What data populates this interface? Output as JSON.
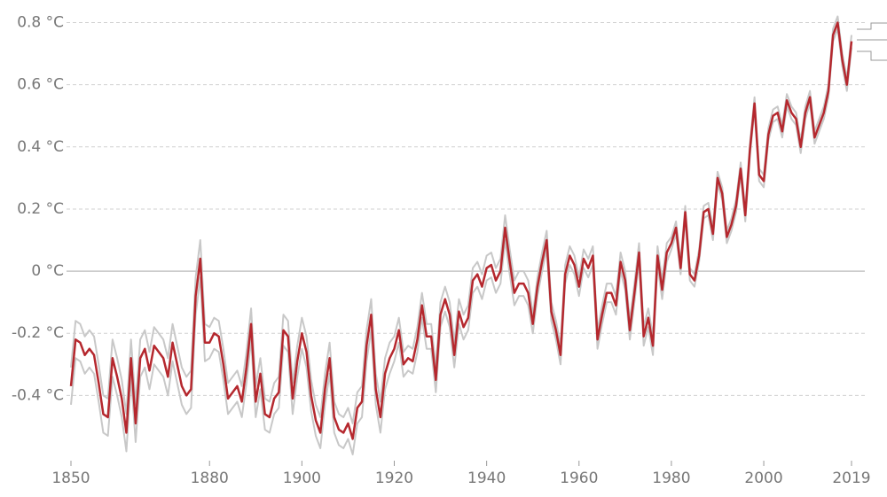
{
  "chart_data": {
    "type": "line",
    "x": [
      1850,
      1851,
      1852,
      1853,
      1854,
      1855,
      1856,
      1857,
      1858,
      1859,
      1860,
      1861,
      1862,
      1863,
      1864,
      1865,
      1866,
      1867,
      1868,
      1869,
      1870,
      1871,
      1872,
      1873,
      1874,
      1875,
      1876,
      1877,
      1878,
      1879,
      1880,
      1881,
      1882,
      1883,
      1884,
      1885,
      1886,
      1887,
      1888,
      1889,
      1890,
      1891,
      1892,
      1893,
      1894,
      1895,
      1896,
      1897,
      1898,
      1899,
      1900,
      1901,
      1902,
      1903,
      1904,
      1905,
      1906,
      1907,
      1908,
      1909,
      1910,
      1911,
      1912,
      1913,
      1914,
      1915,
      1916,
      1917,
      1918,
      1919,
      1920,
      1921,
      1922,
      1923,
      1924,
      1925,
      1926,
      1927,
      1928,
      1929,
      1930,
      1931,
      1932,
      1933,
      1934,
      1935,
      1936,
      1937,
      1938,
      1939,
      1940,
      1941,
      1942,
      1943,
      1944,
      1945,
      1946,
      1947,
      1948,
      1949,
      1950,
      1951,
      1952,
      1953,
      1954,
      1955,
      1956,
      1957,
      1958,
      1959,
      1960,
      1961,
      1962,
      1963,
      1964,
      1965,
      1966,
      1967,
      1968,
      1969,
      1970,
      1971,
      1972,
      1973,
      1974,
      1975,
      1976,
      1977,
      1978,
      1979,
      1980,
      1981,
      1982,
      1983,
      1984,
      1985,
      1986,
      1987,
      1988,
      1989,
      1990,
      1991,
      1992,
      1993,
      1994,
      1995,
      1996,
      1997,
      1998,
      1999,
      2000,
      2001,
      2002,
      2003,
      2004,
      2005,
      2006,
      2007,
      2008,
      2009,
      2010,
      2011,
      2012,
      2013,
      2014,
      2015,
      2016,
      2017,
      2018,
      2019
    ],
    "series": [
      {
        "color": "#c8c8c8",
        "values": [
          -0.31,
          -0.16,
          -0.17,
          -0.21,
          -0.19,
          -0.21,
          -0.3,
          -0.4,
          -0.41,
          -0.22,
          -0.28,
          -0.35,
          -0.46,
          -0.22,
          -0.43,
          -0.22,
          -0.19,
          -0.26,
          -0.18,
          -0.2,
          -0.22,
          -0.28,
          -0.17,
          -0.24,
          -0.31,
          -0.34,
          -0.32,
          -0.02,
          0.1,
          -0.17,
          -0.18,
          -0.15,
          -0.16,
          -0.25,
          -0.36,
          -0.34,
          -0.32,
          -0.37,
          -0.26,
          -0.12,
          -0.37,
          -0.28,
          -0.41,
          -0.42,
          -0.36,
          -0.34,
          -0.14,
          -0.16,
          -0.36,
          -0.24,
          -0.15,
          -0.21,
          -0.35,
          -0.43,
          -0.47,
          -0.33,
          -0.23,
          -0.42,
          -0.46,
          -0.47,
          -0.44,
          -0.49,
          -0.39,
          -0.37,
          -0.19,
          -0.09,
          -0.33,
          -0.42,
          -0.28,
          -0.23,
          -0.21,
          -0.15,
          -0.26,
          -0.24,
          -0.25,
          -0.18,
          -0.07,
          -0.17,
          -0.17,
          -0.31,
          -0.1,
          -0.05,
          -0.1,
          -0.23,
          -0.09,
          -0.14,
          -0.11,
          0.01,
          0.03,
          -0.01,
          0.05,
          0.06,
          0.01,
          0.04,
          0.18,
          0.07,
          -0.03,
          0.0,
          0.0,
          -0.03,
          -0.14,
          -0.02,
          0.06,
          0.13,
          -0.1,
          -0.16,
          -0.24,
          0.02,
          0.08,
          0.05,
          -0.02,
          0.07,
          0.04,
          0.08,
          -0.19,
          -0.11,
          -0.04,
          -0.04,
          -0.08,
          0.06,
          0.0,
          -0.16,
          -0.04,
          0.09,
          -0.18,
          -0.12,
          -0.21,
          0.08,
          -0.03,
          0.09,
          0.11,
          0.16,
          0.03,
          0.21,
          0.01,
          -0.01,
          0.07,
          0.21,
          0.22,
          0.14,
          0.32,
          0.27,
          0.13,
          0.17,
          0.23,
          0.35,
          0.2,
          0.41,
          0.56,
          0.33,
          0.31,
          0.46,
          0.52,
          0.53,
          0.47,
          0.57,
          0.53,
          0.51,
          0.42,
          0.53,
          0.58,
          0.45,
          0.49,
          0.53,
          0.6,
          0.78,
          0.82,
          0.7,
          0.62,
          0.76
        ]
      },
      {
        "color": "#c8c8c8",
        "values": [
          -0.43,
          -0.28,
          -0.29,
          -0.33,
          -0.31,
          -0.33,
          -0.42,
          -0.52,
          -0.53,
          -0.34,
          -0.4,
          -0.47,
          -0.58,
          -0.34,
          -0.55,
          -0.34,
          -0.31,
          -0.38,
          -0.3,
          -0.32,
          -0.34,
          -0.4,
          -0.29,
          -0.36,
          -0.43,
          -0.46,
          -0.44,
          -0.14,
          -0.02,
          -0.29,
          -0.28,
          -0.25,
          -0.26,
          -0.35,
          -0.46,
          -0.44,
          -0.42,
          -0.47,
          -0.36,
          -0.22,
          -0.47,
          -0.38,
          -0.51,
          -0.52,
          -0.46,
          -0.44,
          -0.24,
          -0.26,
          -0.46,
          -0.34,
          -0.25,
          -0.31,
          -0.45,
          -0.53,
          -0.57,
          -0.43,
          -0.33,
          -0.52,
          -0.56,
          -0.57,
          -0.54,
          -0.59,
          -0.49,
          -0.47,
          -0.29,
          -0.19,
          -0.43,
          -0.52,
          -0.38,
          -0.33,
          -0.29,
          -0.23,
          -0.34,
          -0.32,
          -0.33,
          -0.26,
          -0.15,
          -0.25,
          -0.25,
          -0.39,
          -0.18,
          -0.13,
          -0.18,
          -0.31,
          -0.17,
          -0.22,
          -0.19,
          -0.07,
          -0.05,
          -0.09,
          -0.03,
          -0.02,
          -0.07,
          -0.04,
          0.1,
          -0.01,
          -0.11,
          -0.08,
          -0.08,
          -0.11,
          -0.2,
          -0.08,
          0.0,
          0.07,
          -0.16,
          -0.22,
          -0.3,
          -0.04,
          0.02,
          -0.01,
          -0.08,
          0.01,
          -0.02,
          0.02,
          -0.25,
          -0.17,
          -0.1,
          -0.1,
          -0.14,
          0.0,
          -0.06,
          -0.22,
          -0.1,
          0.03,
          -0.24,
          -0.18,
          -0.27,
          0.02,
          -0.09,
          0.03,
          0.07,
          0.12,
          -0.01,
          0.17,
          -0.03,
          -0.05,
          0.03,
          0.17,
          0.18,
          0.1,
          0.28,
          0.23,
          0.09,
          0.13,
          0.19,
          0.31,
          0.16,
          0.37,
          0.52,
          0.29,
          0.27,
          0.42,
          0.48,
          0.49,
          0.43,
          0.53,
          0.49,
          0.47,
          0.38,
          0.49,
          0.54,
          0.41,
          0.45,
          0.49,
          0.56,
          0.74,
          0.78,
          0.66,
          0.58,
          0.72
        ]
      },
      {
        "color": "#b5282e",
        "values": [
          -0.37,
          -0.22,
          -0.23,
          -0.27,
          -0.25,
          -0.27,
          -0.36,
          -0.46,
          -0.47,
          -0.28,
          -0.34,
          -0.41,
          -0.52,
          -0.28,
          -0.49,
          -0.28,
          -0.25,
          -0.32,
          -0.24,
          -0.26,
          -0.28,
          -0.34,
          -0.23,
          -0.3,
          -0.37,
          -0.4,
          -0.38,
          -0.08,
          0.04,
          -0.23,
          -0.23,
          -0.2,
          -0.21,
          -0.3,
          -0.41,
          -0.39,
          -0.37,
          -0.42,
          -0.31,
          -0.17,
          -0.42,
          -0.33,
          -0.46,
          -0.47,
          -0.41,
          -0.39,
          -0.19,
          -0.21,
          -0.41,
          -0.29,
          -0.2,
          -0.26,
          -0.4,
          -0.48,
          -0.52,
          -0.38,
          -0.28,
          -0.47,
          -0.51,
          -0.52,
          -0.49,
          -0.54,
          -0.44,
          -0.42,
          -0.24,
          -0.14,
          -0.38,
          -0.47,
          -0.33,
          -0.28,
          -0.25,
          -0.19,
          -0.3,
          -0.28,
          -0.29,
          -0.22,
          -0.11,
          -0.21,
          -0.21,
          -0.35,
          -0.14,
          -0.09,
          -0.14,
          -0.27,
          -0.13,
          -0.18,
          -0.15,
          -0.03,
          -0.01,
          -0.05,
          0.01,
          0.02,
          -0.03,
          0.0,
          0.14,
          0.03,
          -0.07,
          -0.04,
          -0.04,
          -0.07,
          -0.17,
          -0.05,
          0.03,
          0.1,
          -0.13,
          -0.19,
          -0.27,
          -0.01,
          0.05,
          0.02,
          -0.05,
          0.04,
          0.01,
          0.05,
          -0.22,
          -0.14,
          -0.07,
          -0.07,
          -0.11,
          0.03,
          -0.03,
          -0.19,
          -0.07,
          0.06,
          -0.21,
          -0.15,
          -0.24,
          0.05,
          -0.06,
          0.06,
          0.09,
          0.14,
          0.01,
          0.19,
          -0.01,
          -0.03,
          0.05,
          0.19,
          0.2,
          0.12,
          0.3,
          0.25,
          0.11,
          0.15,
          0.21,
          0.33,
          0.18,
          0.39,
          0.54,
          0.31,
          0.29,
          0.44,
          0.5,
          0.51,
          0.45,
          0.55,
          0.51,
          0.49,
          0.4,
          0.51,
          0.56,
          0.43,
          0.47,
          0.51,
          0.58,
          0.76,
          0.8,
          0.68,
          0.6,
          0.74
        ]
      }
    ],
    "xlim": [
      1850,
      2019
    ],
    "xticks": [
      1850,
      1880,
      1900,
      1920,
      1940,
      1960,
      1980,
      2000,
      2019
    ],
    "ylim": [
      -0.61,
      0.85
    ],
    "yticks": [
      {
        "value": -0.4,
        "label": "-0.4 °C"
      },
      {
        "value": -0.2,
        "label": "-0.2 °C"
      },
      {
        "value": 0,
        "label": "0 °C"
      },
      {
        "value": 0.2,
        "label": "0.2 °C"
      },
      {
        "value": 0.4,
        "label": "0.4 °C"
      },
      {
        "value": 0.6,
        "label": "0.6 °C"
      },
      {
        "value": 0.8,
        "label": "0.8 °C"
      }
    ],
    "grid": true
  }
}
